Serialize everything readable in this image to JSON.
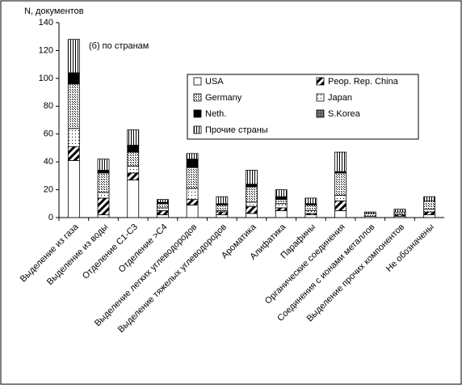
{
  "chart_data": {
    "type": "stacked_bar",
    "y_label": "N, документов",
    "annotation": "(б) по странам",
    "categories": [
      "Выделение из газа",
      "Выделение из воды",
      "Отделение С1-С3",
      "Отделение >С4",
      "Выделение легких углеводородов",
      "Выделение тяжелых углеводородов",
      "Ароматика",
      "Алифатика",
      "Парафины",
      "Органические соединения",
      "Соединения с ионами металлов",
      "Выделение прочих компонентов",
      "Не обозначены"
    ],
    "series": [
      {
        "name": "USA",
        "values": [
          41,
          2,
          27,
          2,
          9,
          2,
          3,
          5,
          2,
          5,
          1,
          1,
          2
        ]
      },
      {
        "name": "Peop. Rep. China",
        "values": [
          10,
          12,
          5,
          3,
          4,
          2,
          5,
          2,
          1,
          7,
          0,
          1,
          2
        ]
      },
      {
        "name": "Japan",
        "values": [
          13,
          4,
          5,
          2,
          8,
          1,
          3,
          3,
          2,
          4,
          0,
          0,
          2
        ]
      },
      {
        "name": "Germany",
        "values": [
          32,
          14,
          10,
          3,
          15,
          4,
          11,
          3,
          4,
          16,
          2,
          2,
          6
        ]
      },
      {
        "name": "Neth.",
        "values": [
          8,
          2,
          5,
          1,
          6,
          1,
          2,
          2,
          1,
          1,
          0,
          0,
          0
        ]
      },
      {
        "name": "S.Korea",
        "values": [
          0,
          0,
          0,
          0,
          0,
          0,
          0,
          0,
          0,
          0,
          0,
          0,
          0
        ]
      },
      {
        "name": "Прочие страны",
        "values": [
          24,
          8,
          11,
          2,
          4,
          5,
          10,
          5,
          4,
          14,
          1,
          2,
          3
        ]
      }
    ],
    "ylim": [
      0,
      140
    ],
    "yticks": [
      0,
      20,
      40,
      60,
      80,
      100,
      120,
      140
    ]
  }
}
